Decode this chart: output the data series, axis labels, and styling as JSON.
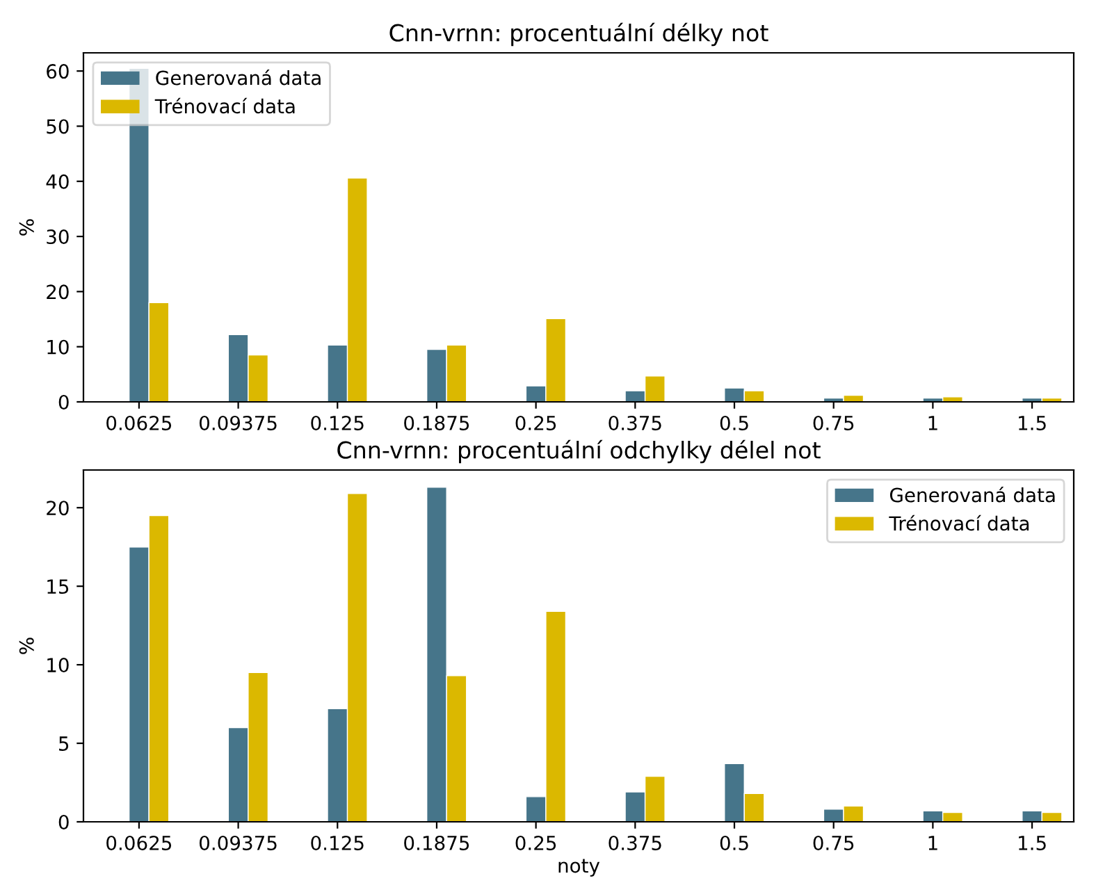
{
  "chart_data": [
    {
      "type": "bar",
      "title": "Cnn-vrnn: procentuální délky not",
      "ylabel": "%",
      "categories": [
        "0.0625",
        "0.09375",
        "0.125",
        "0.1875",
        "0.25",
        "0.375",
        "0.5",
        "0.75",
        "1",
        "1.5"
      ],
      "ylim": [
        0,
        63.3
      ],
      "yticks": [
        0,
        10,
        20,
        30,
        40,
        50,
        60
      ],
      "legend": "top left",
      "grid": false,
      "series": [
        {
          "name": "Generovaná data",
          "color": "#46758a",
          "values": [
            60.5,
            12.2,
            10.3,
            9.5,
            2.9,
            2.0,
            2.5,
            0.7,
            0.7,
            0.7
          ]
        },
        {
          "name": "Trénovací data",
          "color": "#dbb800",
          "values": [
            18.0,
            8.5,
            40.6,
            10.3,
            15.1,
            4.7,
            2.0,
            1.2,
            0.9,
            0.7
          ]
        }
      ]
    },
    {
      "type": "bar",
      "title": "Cnn-vrnn: procentuální odchylky délel not",
      "xlabel": "noty",
      "ylabel": "%",
      "categories": [
        "0.0625",
        "0.09375",
        "0.125",
        "0.1875",
        "0.25",
        "0.375",
        "0.5",
        "0.75",
        "1",
        "1.5"
      ],
      "ylim": [
        0,
        22.4
      ],
      "yticks": [
        0,
        5,
        10,
        15,
        20
      ],
      "legend": "top right",
      "grid": false,
      "series": [
        {
          "name": "Generovaná data",
          "color": "#46758a",
          "values": [
            17.5,
            6.0,
            7.2,
            21.3,
            1.6,
            1.9,
            3.7,
            0.8,
            0.7,
            0.7
          ]
        },
        {
          "name": "Trénovací data",
          "color": "#dbb800",
          "values": [
            19.5,
            9.5,
            20.9,
            9.3,
            13.4,
            2.9,
            1.8,
            1.0,
            0.6,
            0.6
          ]
        }
      ]
    }
  ]
}
